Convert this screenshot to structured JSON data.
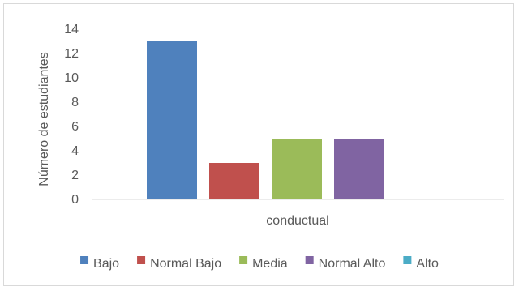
{
  "chart_data": {
    "type": "bar",
    "categories": [
      "conductual"
    ],
    "series": [
      {
        "name": "Bajo",
        "values": [
          13
        ],
        "color": "#4f81bd"
      },
      {
        "name": "Normal Bajo",
        "values": [
          3
        ],
        "color": "#c0504d"
      },
      {
        "name": "Media",
        "values": [
          5
        ],
        "color": "#9bbb59"
      },
      {
        "name": "Normal Alto",
        "values": [
          5
        ],
        "color": "#8064a2"
      },
      {
        "name": "Alto",
        "values": [
          0
        ],
        "color": "#4bacc6"
      }
    ],
    "title": "",
    "xlabel": "",
    "ylabel": "Número de estudiantes",
    "ylim": [
      0,
      14
    ],
    "yticks": [
      0,
      2,
      4,
      6,
      8,
      10,
      12,
      14
    ],
    "grid": false,
    "legend": "bottom"
  }
}
